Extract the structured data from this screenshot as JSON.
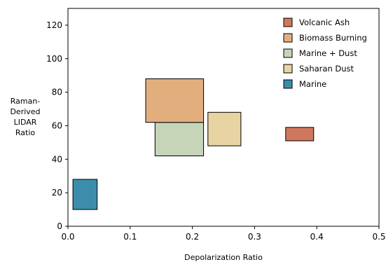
{
  "chart_data": {
    "type": "box-regions",
    "title": "",
    "xlabel": "Depolarization Ratio",
    "ylabel_lines": [
      "Raman-",
      "Derived",
      "LIDAR",
      "Ratio"
    ],
    "xlim": [
      0,
      0.5
    ],
    "ylim": [
      0,
      130
    ],
    "xticks": [
      0.0,
      0.1,
      0.2,
      0.3,
      0.4,
      0.5
    ],
    "xtick_labels": [
      "0.0",
      "0.1",
      "0.2",
      "0.3",
      "0.4",
      "0.5"
    ],
    "yticks": [
      0,
      20,
      40,
      60,
      80,
      100,
      120
    ],
    "ytick_labels": [
      "0",
      "20",
      "40",
      "60",
      "80",
      "100",
      "120"
    ],
    "grid": false,
    "legend_position": "top-right",
    "series": [
      {
        "name": "Volcanic Ash",
        "color": "#d0785e",
        "x": [
          0.35,
          0.395
        ],
        "y": [
          51,
          59
        ]
      },
      {
        "name": "Biomass Burning",
        "color": "#e3ae7e",
        "x": [
          0.125,
          0.218
        ],
        "y": [
          62,
          88
        ]
      },
      {
        "name": "Marine + Dust",
        "color": "#c6d5b8",
        "x": [
          0.14,
          0.218
        ],
        "y": [
          42,
          62
        ]
      },
      {
        "name": "Saharan Dust",
        "color": "#e8d4a2",
        "x": [
          0.225,
          0.278
        ],
        "y": [
          48,
          68
        ]
      },
      {
        "name": "Marine",
        "color": "#3b8dab",
        "x": [
          0.008,
          0.047
        ],
        "y": [
          10,
          28
        ]
      }
    ]
  }
}
